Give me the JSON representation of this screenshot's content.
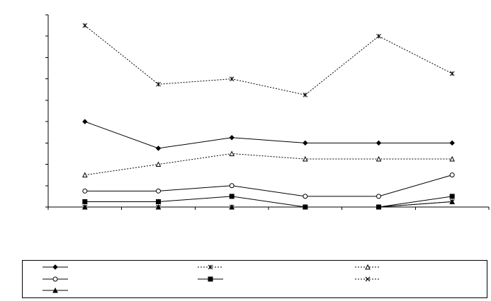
{
  "chart_data": {
    "type": "line",
    "title": "",
    "xlabel": "",
    "ylabel": "",
    "categories": [
      "",
      "",
      "",
      "",
      "",
      ""
    ],
    "ylim": [
      0,
      9
    ],
    "y_ticks": [
      0,
      1,
      2,
      3,
      4,
      5,
      6,
      7,
      8,
      9
    ],
    "x_gridlines": false,
    "y_gridlines": false,
    "legend": {
      "placement": "bottom",
      "columns": 3
    },
    "series": [
      {
        "key": "diamond",
        "marker": "diamond",
        "dash": "solid",
        "color": "#000000",
        "values": [
          4.0,
          2.75,
          3.25,
          3.0,
          3.0,
          3.0
        ]
      },
      {
        "key": "star",
        "marker": "star",
        "dash": "dotted",
        "color": "#000000",
        "values": [
          8.5,
          5.75,
          6.0,
          5.25,
          8.0,
          6.25
        ]
      },
      {
        "key": "triangle-open",
        "marker": "triangle-open",
        "dash": "dotted",
        "color": "#000000",
        "values": [
          1.5,
          2.0,
          2.5,
          2.25,
          2.25,
          2.25
        ]
      },
      {
        "key": "circle-open",
        "marker": "circle-open",
        "dash": "solid",
        "color": "#000000",
        "values": [
          0.75,
          0.75,
          1.0,
          0.5,
          0.5,
          1.5
        ]
      },
      {
        "key": "square",
        "marker": "square",
        "dash": "solid",
        "color": "#000000",
        "values": [
          0.25,
          0.25,
          0.5,
          0.0,
          0.0,
          0.5
        ]
      },
      {
        "key": "x-mark",
        "marker": "x",
        "dash": "dotted",
        "color": "#000000",
        "values": [
          0.0,
          0.0,
          0.0,
          0.0,
          0.0,
          0.25
        ]
      },
      {
        "key": "triangle-filled",
        "marker": "triangle-filled",
        "dash": "solid",
        "color": "#000000",
        "values": [
          0.0,
          0.0,
          0.0,
          0.0,
          0.0,
          0.25
        ]
      }
    ]
  }
}
